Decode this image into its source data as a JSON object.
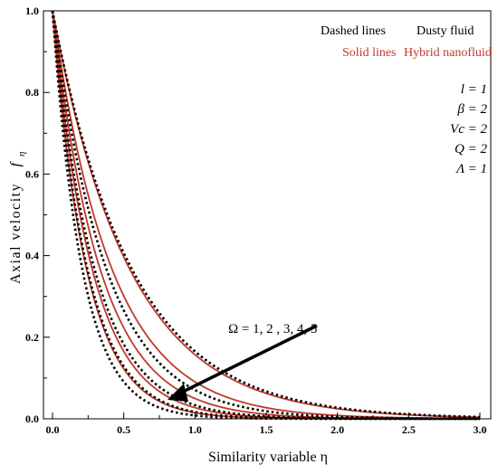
{
  "chart_data": {
    "type": "line",
    "title": "",
    "xlabel": "Similarity variable η",
    "ylabel": "Axial velocity  f_η",
    "ylabel_main": "Axial velocity",
    "ylabel_symbol": "f",
    "ylabel_subscript": "η",
    "xlim": [
      0,
      3.0
    ],
    "ylim": [
      0,
      1.0
    ],
    "xticks": [
      "0.0",
      "0.5",
      "1.0",
      "1.5",
      "2.0",
      "2.5",
      "3.0"
    ],
    "yticks": [
      "0.0",
      "0.2",
      "0.4",
      "0.6",
      "0.8",
      "1.0"
    ],
    "grid": false,
    "legend": {
      "placement": "top-right",
      "dashed_key": "Dashed lines",
      "dashed_value": "Dusty fluid",
      "solid_key": "Solid lines",
      "solid_value": "Hybrid nanofluid"
    },
    "parameters": [
      "l = 1",
      "β = 2",
      "Vc = 2",
      "Q = 2",
      "Λ = 1"
    ],
    "annotation": "Ω = 1,  2 , 3, 4, 5",
    "colors": {
      "solid": "#c0392b",
      "dashed": "#000000"
    },
    "series": [
      {
        "style": "solid",
        "decay": 1.85,
        "values": [
          [
            0,
            1.0
          ],
          [
            0.25,
            0.629
          ],
          [
            0.5,
            0.397
          ],
          [
            0.75,
            0.25
          ],
          [
            1.0,
            0.157
          ],
          [
            1.5,
            0.062
          ],
          [
            2.0,
            0.025
          ],
          [
            2.5,
            0.01
          ],
          [
            3.0,
            0.004
          ]
        ]
      },
      {
        "style": "solid",
        "decay": 2.4,
        "values": [
          [
            0,
            1.0
          ],
          [
            0.25,
            0.549
          ],
          [
            0.5,
            0.301
          ],
          [
            0.75,
            0.165
          ],
          [
            1.0,
            0.091
          ],
          [
            1.5,
            0.027
          ],
          [
            2.0,
            0.008
          ],
          [
            2.5,
            0.002
          ],
          [
            3.0,
            0.001
          ]
        ]
      },
      {
        "style": "solid",
        "decay": 3.0,
        "values": [
          [
            0,
            1.0
          ],
          [
            0.25,
            0.472
          ],
          [
            0.5,
            0.223
          ],
          [
            0.75,
            0.105
          ],
          [
            1.0,
            0.05
          ],
          [
            1.5,
            0.011
          ],
          [
            2.0,
            0.002
          ],
          [
            2.5,
            0.001
          ],
          [
            3.0,
            0.0
          ]
        ]
      },
      {
        "style": "solid",
        "decay": 3.6,
        "values": [
          [
            0,
            1.0
          ],
          [
            0.25,
            0.407
          ],
          [
            0.5,
            0.165
          ],
          [
            0.75,
            0.067
          ],
          [
            1.0,
            0.027
          ],
          [
            1.5,
            0.005
          ],
          [
            2.0,
            0.001
          ],
          [
            2.5,
            0.0
          ],
          [
            3.0,
            0.0
          ]
        ]
      },
      {
        "style": "solid",
        "decay": 4.2,
        "values": [
          [
            0,
            1.0
          ],
          [
            0.25,
            0.35
          ],
          [
            0.5,
            0.122
          ],
          [
            0.75,
            0.043
          ],
          [
            1.0,
            0.015
          ],
          [
            1.5,
            0.002
          ],
          [
            2.0,
            0.0
          ],
          [
            2.5,
            0.0
          ],
          [
            3.0,
            0.0
          ]
        ]
      },
      {
        "style": "dashed",
        "decay": 1.8,
        "values": [
          [
            0,
            1.0
          ],
          [
            0.25,
            0.638
          ],
          [
            0.5,
            0.407
          ],
          [
            0.75,
            0.259
          ],
          [
            1.0,
            0.165
          ],
          [
            1.5,
            0.067
          ],
          [
            2.0,
            0.027
          ],
          [
            2.5,
            0.011
          ],
          [
            3.0,
            0.005
          ]
        ]
      },
      {
        "style": "dashed",
        "decay": 2.65,
        "values": [
          [
            0,
            1.0
          ],
          [
            0.25,
            0.516
          ],
          [
            0.5,
            0.266
          ],
          [
            0.75,
            0.137
          ],
          [
            1.0,
            0.071
          ],
          [
            1.5,
            0.019
          ],
          [
            2.0,
            0.005
          ],
          [
            2.5,
            0.001
          ],
          [
            3.0,
            0.0
          ]
        ]
      },
      {
        "style": "dashed",
        "decay": 3.4,
        "values": [
          [
            0,
            1.0
          ],
          [
            0.25,
            0.427
          ],
          [
            0.5,
            0.183
          ],
          [
            0.75,
            0.078
          ],
          [
            1.0,
            0.033
          ],
          [
            1.5,
            0.006
          ],
          [
            2.0,
            0.001
          ],
          [
            2.5,
            0.0
          ],
          [
            3.0,
            0.0
          ]
        ]
      },
      {
        "style": "dashed",
        "decay": 4.1,
        "values": [
          [
            0,
            1.0
          ],
          [
            0.25,
            0.359
          ],
          [
            0.5,
            0.129
          ],
          [
            0.75,
            0.046
          ],
          [
            1.0,
            0.017
          ],
          [
            1.5,
            0.002
          ],
          [
            2.0,
            0.0
          ],
          [
            2.5,
            0.0
          ],
          [
            3.0,
            0.0
          ]
        ]
      },
      {
        "style": "dashed",
        "decay": 4.8,
        "values": [
          [
            0,
            1.0
          ],
          [
            0.25,
            0.301
          ],
          [
            0.5,
            0.091
          ],
          [
            0.75,
            0.027
          ],
          [
            1.0,
            0.008
          ],
          [
            1.5,
            0.001
          ],
          [
            2.0,
            0.0
          ],
          [
            2.5,
            0.0
          ],
          [
            3.0,
            0.0
          ]
        ]
      }
    ]
  }
}
